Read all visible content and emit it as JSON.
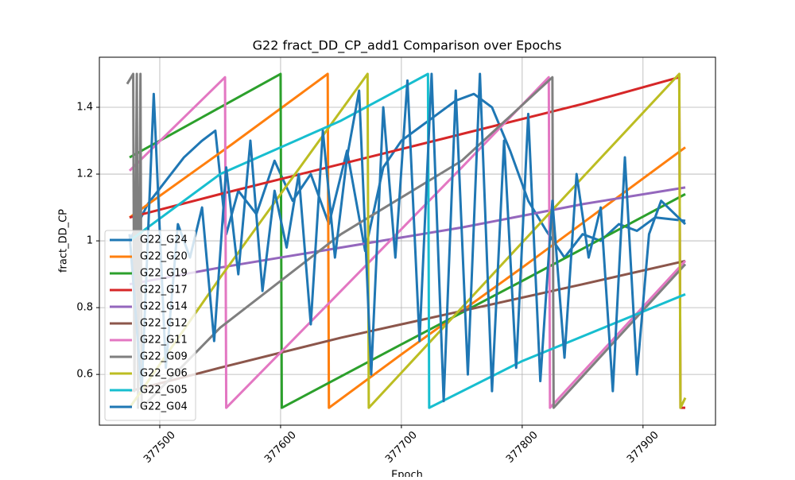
{
  "chart_data": {
    "type": "line",
    "title": "G22 fract_DD_CP_add1 Comparison over Epochs",
    "x_label": "Epoch",
    "y_label": "fract_DD_CP",
    "xlim": [
      377450,
      377960
    ],
    "ylim": [
      0.448,
      1.55
    ],
    "xticks": [
      377500,
      377600,
      377700,
      377800,
      377900
    ],
    "yticks": [
      0.6,
      0.8,
      1.0,
      1.2,
      1.4
    ],
    "grid": true,
    "legend": "lower left",
    "series": [
      {
        "name": "G22_G24",
        "color": "#1f77b4",
        "x": [
          377475,
          377490,
          377505,
          377520,
          377535,
          377546,
          377555,
          377565,
          377580,
          377595,
          377610,
          377625,
          377640,
          377655,
          377670,
          377685,
          377700,
          377715,
          377730,
          377745,
          377760,
          377775,
          377790,
          377805,
          377820,
          377835,
          377850,
          377865,
          377880,
          377895,
          377910,
          377935
        ],
        "values": [
          1.0,
          1.11,
          1.18,
          1.25,
          1.3,
          1.33,
          1.02,
          1.15,
          1.08,
          1.24,
          1.12,
          1.2,
          1.05,
          1.27,
          0.97,
          1.22,
          1.3,
          1.34,
          1.38,
          1.42,
          1.44,
          1.4,
          1.27,
          1.12,
          1.03,
          0.95,
          1.02,
          1.0,
          1.05,
          1.03,
          1.07,
          1.06
        ]
      },
      {
        "name": "G22_G20",
        "color": "#ff7f0e",
        "x": [
          377475,
          377560,
          377639,
          377640,
          377700,
          377800,
          377935
        ],
        "values": [
          1.07,
          1.29,
          1.5,
          0.5,
          0.66,
          0.92,
          1.28
        ]
      },
      {
        "name": "G22_G19",
        "color": "#2ca02c",
        "x": [
          377475,
          377540,
          377600,
          377601,
          377700,
          377800,
          377935
        ],
        "values": [
          1.25,
          1.38,
          1.5,
          0.5,
          0.69,
          0.88,
          1.14
        ]
      },
      {
        "name": "G22_G17",
        "color": "#d62728",
        "x": [
          377475,
          377550,
          377650,
          377750,
          377850,
          377930,
          377931,
          377935
        ],
        "values": [
          1.07,
          1.14,
          1.23,
          1.32,
          1.41,
          1.49,
          0.5,
          0.5
        ]
      },
      {
        "name": "G22_G14",
        "color": "#9467bd",
        "x": [
          377475,
          377550,
          377650,
          377750,
          377850,
          377935
        ],
        "values": [
          0.87,
          0.92,
          0.98,
          1.04,
          1.11,
          1.16
        ]
      },
      {
        "name": "G22_G12",
        "color": "#8c564b",
        "x": [
          377475,
          377550,
          377650,
          377750,
          377850,
          377935
        ],
        "values": [
          0.55,
          0.62,
          0.71,
          0.79,
          0.87,
          0.94
        ]
      },
      {
        "name": "G22_G11",
        "color": "#e377c2",
        "x": [
          377475,
          377554,
          377555,
          377650,
          377750,
          377822,
          377823,
          377935
        ],
        "values": [
          1.21,
          1.49,
          0.5,
          0.85,
          1.22,
          1.49,
          0.5,
          0.94
        ]
      },
      {
        "name": "G22_G09",
        "color": "#7f7f7f",
        "x": [
          377473,
          377478,
          377479,
          377481,
          377482,
          377484,
          377485,
          377550,
          377650,
          377750,
          377825,
          377826,
          377935
        ],
        "values": [
          1.47,
          1.5,
          0.55,
          1.5,
          0.5,
          1.5,
          0.5,
          0.74,
          1.02,
          1.24,
          1.49,
          0.5,
          0.93
        ]
      },
      {
        "name": "G22_G06",
        "color": "#bcbd22",
        "x": [
          377475,
          377550,
          377672,
          377673,
          377750,
          377850,
          377930,
          377931,
          377935
        ],
        "values": [
          0.5,
          0.89,
          1.5,
          0.5,
          0.8,
          1.19,
          1.5,
          0.5,
          0.53
        ]
      },
      {
        "name": "G22_G05",
        "color": "#17becf",
        "x": [
          377475,
          377550,
          377650,
          377722,
          377723,
          377800,
          377935
        ],
        "values": [
          1.0,
          1.2,
          1.36,
          1.5,
          0.5,
          0.64,
          0.84
        ]
      },
      {
        "name": "G22_G04",
        "color": "#1f77b4",
        "x": [
          377475,
          377485,
          377495,
          377505,
          377515,
          377525,
          377535,
          377545,
          377555,
          377565,
          377575,
          377585,
          377595,
          377605,
          377615,
          377625,
          377635,
          377645,
          377655,
          377665,
          377675,
          377685,
          377695,
          377705,
          377715,
          377725,
          377735,
          377745,
          377755,
          377765,
          377775,
          377785,
          377795,
          377805,
          377815,
          377825,
          377835,
          377845,
          377855,
          377865,
          377875,
          377885,
          377895,
          377905,
          377915,
          377935
        ],
        "values": [
          1.02,
          0.55,
          1.44,
          0.62,
          1.05,
          0.95,
          1.1,
          0.7,
          1.22,
          0.9,
          1.3,
          0.85,
          1.15,
          0.98,
          1.2,
          0.75,
          1.33,
          0.95,
          1.25,
          1.45,
          0.6,
          1.4,
          0.95,
          1.48,
          0.7,
          1.5,
          0.52,
          1.45,
          0.6,
          1.5,
          0.55,
          1.3,
          0.62,
          1.38,
          0.58,
          1.12,
          0.65,
          1.2,
          0.95,
          1.1,
          0.55,
          1.25,
          0.6,
          1.02,
          1.12,
          1.05
        ]
      }
    ]
  }
}
